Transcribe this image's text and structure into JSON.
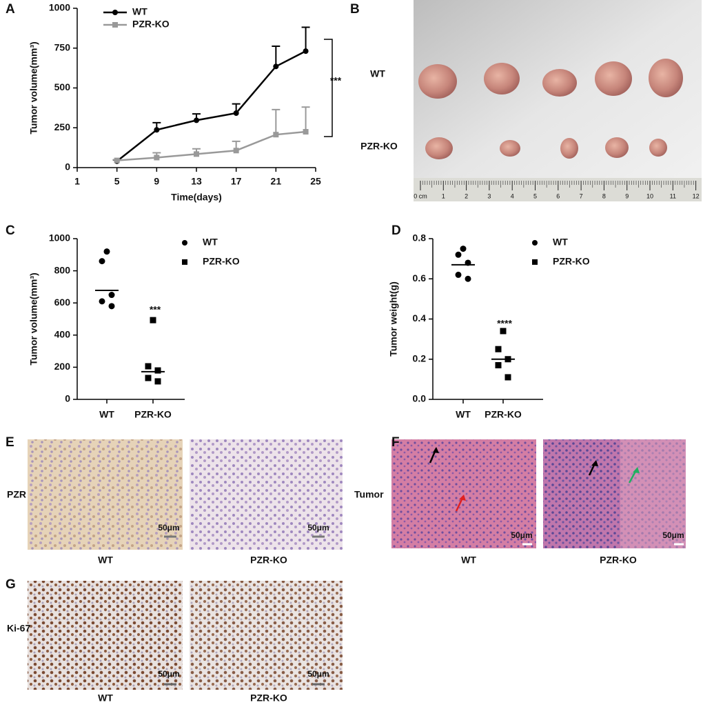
{
  "chart_data": [
    {
      "panel": "A",
      "type": "line",
      "x": [
        5,
        9,
        13,
        17,
        21,
        24
      ],
      "xlim": [
        1,
        25
      ],
      "xticks": [
        1,
        5,
        9,
        13,
        17,
        21,
        25
      ],
      "ylim": [
        0,
        1000
      ],
      "yticks": [
        0,
        250,
        500,
        750,
        1000
      ],
      "xlabel": "Time(days)",
      "ylabel": "Tumor volume(mm³)",
      "legend": "upper left",
      "annotation": "***",
      "series": [
        {
          "name": "WT",
          "color": "#000000",
          "marker": "circle",
          "values": [
            40,
            237,
            297,
            342,
            635,
            731
          ],
          "errors": [
            8,
            45,
            40,
            58,
            127,
            150
          ]
        },
        {
          "name": "PZR-KO",
          "color": "#999999",
          "marker": "square",
          "values": [
            45,
            63,
            85,
            107,
            207,
            225
          ],
          "errors": [
            5,
            30,
            33,
            58,
            157,
            155
          ]
        }
      ]
    },
    {
      "panel": "C",
      "type": "strip",
      "categories": [
        "WT",
        "PZR-KO"
      ],
      "ylim": [
        0,
        1000
      ],
      "yticks": [
        0,
        200,
        400,
        600,
        800,
        1000
      ],
      "ylabel": "Tumor volume(mm³)",
      "legend": "upper right",
      "annotation": "***",
      "series": [
        {
          "name": "WT",
          "color": "#000000",
          "marker": "circle",
          "values": [
            920,
            860,
            650,
            610,
            580
          ],
          "center": 678
        },
        {
          "name": "PZR-KO",
          "color": "#000000",
          "marker": "square",
          "values": [
            493,
            206,
            180,
            133,
            112
          ],
          "center": 172
        }
      ]
    },
    {
      "panel": "D",
      "type": "strip",
      "categories": [
        "WT",
        "PZR-KO"
      ],
      "ylim": [
        0,
        0.8
      ],
      "yticks": [
        {
          "value": 0,
          "label": "0.0"
        },
        0.2,
        0.4,
        0.6,
        0.8
      ],
      "ylabel": "Tumor weight(g)",
      "legend": "upper right",
      "annotation": "****",
      "series": [
        {
          "name": "WT",
          "color": "#000000",
          "marker": "circle",
          "values": [
            0.75,
            0.72,
            0.68,
            0.62,
            0.6
          ],
          "center": 0.67
        },
        {
          "name": "PZR-KO",
          "color": "#000000",
          "marker": "square",
          "values": [
            0.34,
            0.25,
            0.2,
            0.17,
            0.11
          ],
          "center": 0.2
        }
      ]
    }
  ],
  "panels": {
    "B": {
      "letter": "B",
      "rows": [
        "WT",
        "PZR-KO"
      ],
      "ruler": [
        "0 cm",
        "1",
        "2",
        "3",
        "4",
        "5",
        "6",
        "7",
        "8",
        "9",
        "10",
        "11",
        "12"
      ]
    },
    "E": {
      "letter": "E",
      "row": "PZR",
      "captions": [
        "WT",
        "PZR-KO"
      ],
      "scales": [
        "50μm",
        "50μm"
      ]
    },
    "F": {
      "letter": "F",
      "row": "Tumor",
      "captions": [
        "WT",
        "PZR-KO"
      ],
      "scales": [
        "50μm",
        "50μm"
      ]
    },
    "G": {
      "letter": "G",
      "row": "Ki-67",
      "captions": [
        "WT",
        "PZR-KO"
      ],
      "scales": [
        "50μm",
        "50μm"
      ]
    }
  }
}
